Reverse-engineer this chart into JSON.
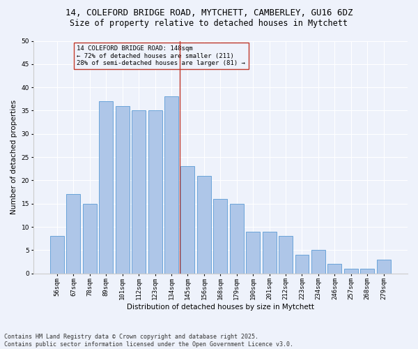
{
  "title1": "14, COLEFORD BRIDGE ROAD, MYTCHETT, CAMBERLEY, GU16 6DZ",
  "title2": "Size of property relative to detached houses in Mytchett",
  "xlabel": "Distribution of detached houses by size in Mytchett",
  "ylabel": "Number of detached properties",
  "categories": [
    "56sqm",
    "67sqm",
    "78sqm",
    "89sqm",
    "101sqm",
    "112sqm",
    "123sqm",
    "134sqm",
    "145sqm",
    "156sqm",
    "168sqm",
    "179sqm",
    "190sqm",
    "201sqm",
    "212sqm",
    "223sqm",
    "234sqm",
    "246sqm",
    "257sqm",
    "268sqm",
    "279sqm"
  ],
  "values": [
    8,
    17,
    15,
    37,
    36,
    35,
    35,
    38,
    23,
    21,
    16,
    15,
    9,
    9,
    8,
    4,
    5,
    2,
    1,
    1,
    3
  ],
  "bar_color": "#aec6e8",
  "bar_edge_color": "#5b9bd5",
  "vline_color": "#c0392b",
  "annotation_text": "14 COLEFORD BRIDGE ROAD: 148sqm\n← 72% of detached houses are smaller (211)\n28% of semi-detached houses are larger (81) →",
  "annotation_box_color": "#c0392b",
  "ylim": [
    0,
    50
  ],
  "yticks": [
    0,
    5,
    10,
    15,
    20,
    25,
    30,
    35,
    40,
    45,
    50
  ],
  "background_color": "#eef2fb",
  "grid_color": "#ffffff",
  "footer": "Contains HM Land Registry data © Crown copyright and database right 2025.\nContains public sector information licensed under the Open Government Licence v3.0.",
  "title_fontsize": 9,
  "subtitle_fontsize": 8.5,
  "axis_label_fontsize": 7.5,
  "tick_fontsize": 6.5,
  "annotation_fontsize": 6.5,
  "footer_fontsize": 6
}
